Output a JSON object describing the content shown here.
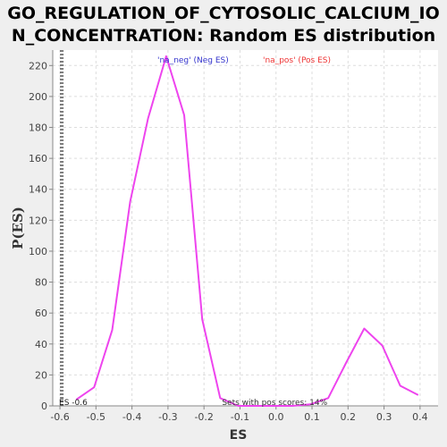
{
  "title_line1": "GO_REGULATION_OF_CYTOSOLIC_CALCIUM_IO",
  "title_line2": "N_CONCENTRATION: Random ES distribution",
  "chart_data": {
    "type": "line",
    "title": "GO_REGULATION_OF_CYTOSOLIC_CALCIUM_ION_CONCENTRATION: Random ES distribution",
    "xlabel": "ES",
    "ylabel": "P(ES)",
    "xlim": [
      -0.62,
      0.45
    ],
    "ylim": [
      0,
      230
    ],
    "xticks": [
      -0.6,
      -0.5,
      -0.4,
      -0.3,
      -0.2,
      -0.1,
      0.0,
      0.1,
      0.2,
      0.3,
      0.4
    ],
    "xtick_labels": [
      "-0.6",
      "-0.5",
      "-0.4",
      "-0.3",
      "-0.2",
      "-0.1",
      "0.0",
      "0.1",
      "0.2",
      "0.3",
      "0.4"
    ],
    "yticks": [
      0,
      20,
      40,
      60,
      80,
      100,
      120,
      140,
      160,
      180,
      200,
      220
    ],
    "grid": true,
    "legend": [
      {
        "label": "'na_neg' (Neg ES)",
        "color": "#3333cc"
      },
      {
        "label": "'na_pos' (Pos ES)",
        "color": "#ee3333"
      }
    ],
    "series": [
      {
        "color": "#ee44ee",
        "x": [
          -0.555,
          -0.505,
          -0.455,
          -0.405,
          -0.355,
          -0.305,
          -0.255,
          -0.205,
          -0.155,
          -0.105,
          -0.055,
          -0.005,
          0.045,
          0.095,
          0.145,
          0.195,
          0.245,
          0.295,
          0.345,
          0.395
        ],
        "y": [
          4,
          12,
          49,
          132,
          186,
          226,
          188,
          56,
          5,
          0,
          0,
          0,
          0,
          1,
          5,
          28,
          50,
          39,
          13,
          7
        ]
      }
    ],
    "marker_line": {
      "x": -0.6,
      "label": "ES -0.6"
    },
    "annotation": "Sets with pos scores: 14%"
  }
}
